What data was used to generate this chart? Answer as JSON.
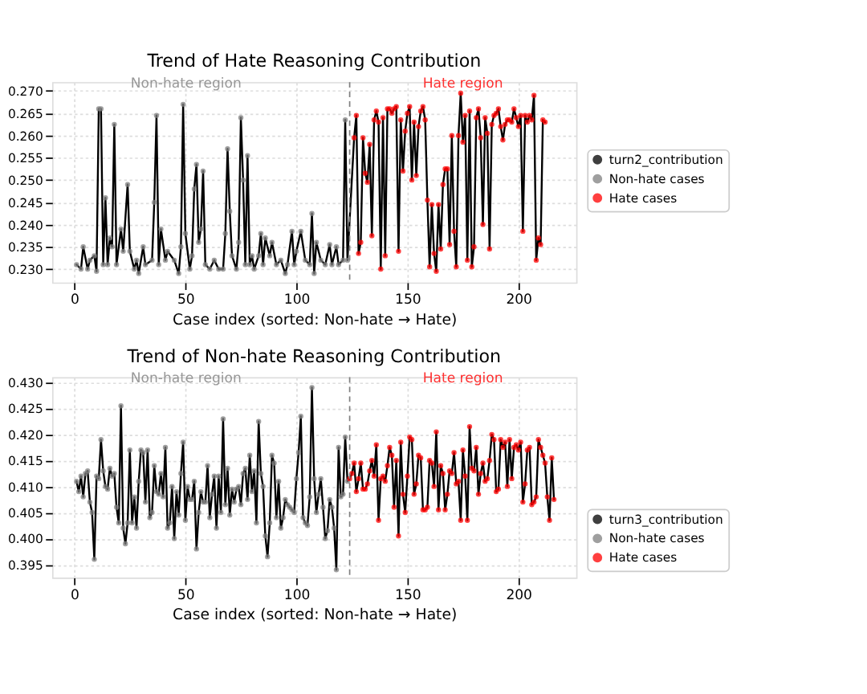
{
  "chart_data": [
    {
      "type": "line",
      "title": "Trend of Hate Reasoning Contribution",
      "xlabel": "Case index (sorted: Non-hate → Hate)",
      "xlim": [
        -10,
        226
      ],
      "ylim": [
        0.227,
        0.272
      ],
      "xticks": [
        0,
        50,
        100,
        150,
        200
      ],
      "yticks": [
        {
          "value": 0.23,
          "label": "0.230"
        },
        0.235,
        {
          "value": 0.24,
          "label": "0.240"
        },
        0.245,
        {
          "value": 0.25,
          "label": "0.250"
        },
        0.255,
        {
          "value": 0.26,
          "label": "0.260"
        },
        0.265,
        {
          "value": 0.27,
          "label": "0.270"
        }
      ],
      "grid": true,
      "legend": "right",
      "marker": "none",
      "ref_lines": [
        {
          "axis": "x",
          "value": 124,
          "color": "#808080",
          "line_style": "dashed"
        }
      ],
      "annotations": [
        "Non-hate region",
        "Hate region"
      ],
      "series": [
        {
          "name": "turn2_contribution",
          "color": "#000000",
          "line_style": "solid",
          "x": [
            1,
            3,
            4,
            6,
            7,
            9,
            10,
            11,
            12,
            13,
            14,
            15,
            16,
            17,
            18,
            19,
            21,
            22,
            24,
            25,
            27,
            28,
            29,
            31,
            32,
            35,
            36,
            37,
            38,
            39,
            41,
            42,
            45,
            47,
            48,
            49,
            50,
            52,
            53,
            54,
            55,
            56,
            57,
            58,
            59,
            61,
            63,
            65,
            67,
            68,
            69,
            70,
            71,
            73,
            74,
            75,
            76,
            77,
            78,
            79,
            80,
            81,
            83,
            84,
            85,
            86,
            88,
            89,
            91,
            93,
            95,
            96,
            98,
            99,
            100,
            102,
            104,
            106,
            107,
            108,
            109,
            111,
            113,
            115,
            116,
            118,
            119,
            121,
            122,
            123,
            126,
            127,
            128,
            129,
            130,
            131,
            132,
            133,
            134,
            135,
            136,
            137,
            138,
            139,
            140,
            141,
            142,
            143,
            144,
            145,
            146,
            147,
            148,
            149,
            150,
            151,
            152,
            153,
            154,
            155,
            156,
            157,
            158,
            159,
            160,
            161,
            162,
            163,
            164,
            165,
            166,
            167,
            168,
            169,
            170,
            171,
            172,
            173,
            174,
            175,
            176,
            177,
            178,
            179,
            180,
            181,
            182,
            183,
            184,
            185,
            186,
            187,
            188,
            189,
            190,
            191,
            192,
            193,
            194,
            195,
            196,
            197,
            198,
            199,
            200,
            201,
            202,
            203,
            204,
            205,
            206,
            207,
            208,
            209,
            210,
            211,
            212
          ],
          "values": [
            0.231,
            0.23,
            0.235,
            0.23,
            0.232,
            0.233,
            0.2295,
            0.266,
            0.266,
            0.231,
            0.246,
            0.231,
            0.237,
            0.235,
            0.2625,
            0.231,
            0.239,
            0.234,
            0.249,
            0.234,
            0.23,
            0.232,
            0.229,
            0.235,
            0.231,
            0.232,
            0.245,
            0.2645,
            0.231,
            0.239,
            0.232,
            0.234,
            0.232,
            0.229,
            0.235,
            0.267,
            0.238,
            0.23,
            0.233,
            0.248,
            0.2535,
            0.236,
            0.239,
            0.252,
            0.231,
            0.23,
            0.232,
            0.23,
            0.23,
            0.238,
            0.257,
            0.243,
            0.233,
            0.23,
            0.236,
            0.264,
            0.25,
            0.231,
            0.2555,
            0.231,
            0.233,
            0.23,
            0.233,
            0.238,
            0.231,
            0.237,
            0.233,
            0.236,
            0.231,
            0.232,
            0.229,
            0.231,
            0.2385,
            0.231,
            0.234,
            0.2385,
            0.232,
            0.231,
            0.2425,
            0.229,
            0.236,
            0.232,
            0.231,
            0.2355,
            0.231,
            0.235,
            0.231,
            0.232,
            0.2635,
            0.232,
            0.2595,
            0.2645,
            0.2335,
            0.236,
            0.2595,
            0.2515,
            0.2495,
            0.258,
            0.2375,
            0.2635,
            0.2655,
            0.263,
            0.23,
            0.264,
            0.233,
            0.266,
            0.266,
            0.265,
            0.266,
            0.2665,
            0.234,
            0.2635,
            0.252,
            0.261,
            0.265,
            0.2665,
            0.25,
            0.263,
            0.251,
            0.262,
            0.2655,
            0.2665,
            0.2635,
            0.2455,
            0.2305,
            0.2445,
            0.2335,
            0.2295,
            0.2445,
            0.2345,
            0.249,
            0.2525,
            0.2525,
            0.2355,
            0.26,
            0.2385,
            0.2305,
            0.26,
            0.2695,
            0.2585,
            0.2645,
            0.232,
            0.2655,
            0.2305,
            0.235,
            0.264,
            0.266,
            0.2595,
            0.24,
            0.264,
            0.2605,
            0.2345,
            0.2625,
            0.2645,
            0.265,
            0.266,
            0.262,
            0.259,
            0.2625,
            0.2635,
            0.2635,
            0.263,
            0.266,
            0.264,
            0.262,
            0.2645,
            0.2385,
            0.2645,
            0.263,
            0.2645,
            0.2635,
            0.269,
            0.232,
            0.237,
            0.2355,
            0.2635,
            0.263
          ]
        },
        {
          "name": "Non-hate cases",
          "type": "scatter",
          "color": "#808080",
          "marker": "circle",
          "x": [
            1,
            3,
            4,
            6,
            7,
            9,
            10,
            11,
            12,
            13,
            14,
            15,
            16,
            17,
            18,
            19,
            21,
            22,
            24,
            25,
            27,
            28,
            29,
            31,
            32,
            35,
            36,
            37,
            38,
            39,
            41,
            42,
            45,
            47,
            48,
            49,
            50,
            52,
            53,
            54,
            55,
            56,
            57,
            58,
            59,
            61,
            63,
            65,
            67,
            68,
            69,
            70,
            71,
            73,
            74,
            75,
            76,
            77,
            78,
            79,
            80,
            81,
            83,
            84,
            85,
            86,
            88,
            89,
            91,
            93,
            95,
            96,
            98,
            99,
            100,
            102,
            104,
            106,
            107,
            108,
            109,
            111,
            113,
            115,
            116,
            118,
            119,
            121,
            122,
            123
          ],
          "values": [
            0.231,
            0.23,
            0.235,
            0.23,
            0.232,
            0.233,
            0.2295,
            0.266,
            0.266,
            0.231,
            0.246,
            0.231,
            0.237,
            0.235,
            0.2625,
            0.231,
            0.239,
            0.234,
            0.249,
            0.234,
            0.23,
            0.232,
            0.229,
            0.235,
            0.231,
            0.232,
            0.245,
            0.2645,
            0.231,
            0.239,
            0.232,
            0.234,
            0.232,
            0.229,
            0.235,
            0.267,
            0.238,
            0.23,
            0.233,
            0.248,
            0.2535,
            0.236,
            0.239,
            0.252,
            0.231,
            0.23,
            0.232,
            0.23,
            0.23,
            0.238,
            0.257,
            0.243,
            0.233,
            0.23,
            0.236,
            0.264,
            0.25,
            0.231,
            0.2555,
            0.231,
            0.233,
            0.23,
            0.233,
            0.238,
            0.231,
            0.237,
            0.233,
            0.236,
            0.231,
            0.232,
            0.229,
            0.231,
            0.2385,
            0.231,
            0.234,
            0.2385,
            0.232,
            0.231,
            0.2425,
            0.229,
            0.236,
            0.232,
            0.231,
            0.2355,
            0.231,
            0.235,
            0.231,
            0.232,
            0.2635,
            0.232
          ]
        },
        {
          "name": "Hate cases",
          "type": "scatter",
          "color": "#ff0000",
          "marker": "circle",
          "x": [
            126,
            127,
            128,
            129,
            130,
            131,
            132,
            133,
            134,
            135,
            136,
            137,
            138,
            139,
            140,
            141,
            142,
            143,
            144,
            145,
            146,
            147,
            148,
            149,
            150,
            151,
            152,
            153,
            154,
            155,
            156,
            157,
            158,
            159,
            160,
            161,
            162,
            163,
            164,
            165,
            166,
            167,
            168,
            169,
            170,
            171,
            172,
            173,
            174,
            175,
            176,
            177,
            178,
            179,
            180,
            181,
            182,
            183,
            184,
            185,
            186,
            187,
            188,
            189,
            190,
            191,
            192,
            193,
            194,
            195,
            196,
            197,
            198,
            199,
            200,
            201,
            202,
            203,
            204,
            205,
            206,
            207,
            208,
            209,
            210,
            211,
            212
          ],
          "values": [
            0.2595,
            0.2645,
            0.2335,
            0.236,
            0.2595,
            0.2515,
            0.2495,
            0.258,
            0.2375,
            0.2635,
            0.2655,
            0.263,
            0.23,
            0.264,
            0.233,
            0.266,
            0.266,
            0.265,
            0.266,
            0.2665,
            0.234,
            0.2635,
            0.252,
            0.261,
            0.265,
            0.2665,
            0.25,
            0.263,
            0.251,
            0.262,
            0.2655,
            0.2665,
            0.2635,
            0.2455,
            0.2305,
            0.2445,
            0.2335,
            0.2295,
            0.2445,
            0.2345,
            0.249,
            0.2525,
            0.2525,
            0.2355,
            0.26,
            0.2385,
            0.2305,
            0.26,
            0.2695,
            0.2585,
            0.2645,
            0.232,
            0.2655,
            0.2305,
            0.235,
            0.264,
            0.266,
            0.2595,
            0.24,
            0.264,
            0.2605,
            0.2345,
            0.2625,
            0.2645,
            0.265,
            0.266,
            0.262,
            0.259,
            0.2625,
            0.2635,
            0.2635,
            0.263,
            0.266,
            0.264,
            0.262,
            0.2645,
            0.2385,
            0.2645,
            0.263,
            0.2645,
            0.2635,
            0.269,
            0.232,
            0.237,
            0.2355,
            0.2635,
            0.263
          ]
        }
      ]
    },
    {
      "type": "line",
      "title": "Trend of Non-hate Reasoning Contribution",
      "xlabel": "Case index (sorted: Non-hate → Hate)",
      "xlim": [
        -10,
        226
      ],
      "ylim": [
        0.3925,
        0.431
      ],
      "xticks": [
        0,
        50,
        100,
        150,
        200
      ],
      "yticks": [
        0.395,
        {
          "value": 0.4,
          "label": "0.400"
        },
        0.405,
        {
          "value": 0.41,
          "label": "0.410"
        },
        0.415,
        {
          "value": 0.42,
          "label": "0.420"
        },
        0.425,
        {
          "value": 0.43,
          "label": "0.430"
        }
      ],
      "grid": true,
      "legend": "bottom right",
      "marker": "none",
      "ref_lines": [
        {
          "axis": "x",
          "value": 124,
          "color": "#808080",
          "line_style": "dashed"
        }
      ],
      "annotations": [
        "Non-hate region",
        "Hate region"
      ],
      "series": [
        {
          "name": "turn3_contribution",
          "color": "#000000",
          "line_style": "solid",
          "x": [
            1,
            2,
            3,
            4,
            5,
            6,
            7,
            8,
            9,
            10,
            11,
            12,
            13,
            14,
            15,
            16,
            17,
            18,
            19,
            20,
            21,
            22,
            23,
            24,
            25,
            26,
            27,
            28,
            29,
            30,
            31,
            32,
            33,
            34,
            35,
            36,
            37,
            38,
            39,
            40,
            41,
            42,
            43,
            44,
            45,
            46,
            47,
            48,
            49,
            50,
            51,
            52,
            53,
            54,
            55,
            56,
            57,
            58,
            59,
            60,
            61,
            62,
            63,
            64,
            65,
            66,
            67,
            68,
            69,
            70,
            71,
            72,
            73,
            74,
            75,
            76,
            77,
            78,
            79,
            80,
            81,
            82,
            83,
            84,
            85,
            86,
            87,
            88,
            89,
            90,
            91,
            92,
            93,
            94,
            95,
            96,
            97,
            98,
            99,
            100,
            101,
            102,
            103,
            104,
            105,
            106,
            107,
            108,
            109,
            110,
            111,
            112,
            113,
            114,
            115,
            116,
            117,
            118,
            119,
            120,
            121,
            122,
            123,
            124,
            125,
            126,
            127,
            128,
            129,
            130,
            131,
            132,
            133,
            134,
            135,
            136,
            137,
            138,
            139,
            140,
            141,
            142,
            143,
            144,
            145,
            146,
            147,
            148,
            149,
            150,
            151,
            152,
            153,
            154,
            155,
            156,
            157,
            158,
            159,
            160,
            161,
            162,
            163,
            164,
            165,
            166,
            167,
            168,
            169,
            170,
            171,
            172,
            173,
            174,
            175,
            176,
            177,
            178,
            179,
            180,
            181,
            182,
            183,
            184,
            185,
            186,
            187,
            188,
            189,
            190,
            191,
            192,
            193,
            194,
            195,
            196,
            197,
            198,
            199,
            200,
            201,
            202,
            203,
            204,
            205,
            206,
            207,
            208,
            209,
            210,
            211,
            212,
            213,
            214,
            215,
            216
          ],
          "values": [
            0.411,
            0.409,
            0.412,
            0.408,
            0.4125,
            0.413,
            0.407,
            0.405,
            0.396,
            0.412,
            0.4115,
            0.419,
            0.413,
            0.41,
            0.4095,
            0.4135,
            0.412,
            0.4125,
            0.406,
            0.403,
            0.4255,
            0.402,
            0.399,
            0.403,
            0.417,
            0.403,
            0.408,
            0.402,
            0.411,
            0.417,
            0.4165,
            0.407,
            0.417,
            0.404,
            0.405,
            0.414,
            0.409,
            0.4085,
            0.4125,
            0.408,
            0.4175,
            0.402,
            0.403,
            0.41,
            0.4,
            0.409,
            0.4045,
            0.4125,
            0.4185,
            0.4035,
            0.41,
            0.4075,
            0.4075,
            0.411,
            0.398,
            0.405,
            0.409,
            0.407,
            0.407,
            0.414,
            0.404,
            0.4085,
            0.412,
            0.402,
            0.412,
            0.405,
            0.423,
            0.4065,
            0.4135,
            0.4045,
            0.4095,
            0.407,
            0.4095,
            0.41,
            0.4065,
            0.4125,
            0.4135,
            0.4075,
            0.416,
            0.409,
            0.413,
            0.403,
            0.4225,
            0.4125,
            0.41,
            0.4005,
            0.3965,
            0.403,
            0.416,
            0.4145,
            0.404,
            0.411,
            0.402,
            0.404,
            0.4075,
            0.4065,
            0.406,
            0.4055,
            0.405,
            0.4115,
            0.4165,
            0.4235,
            0.404,
            0.403,
            0.4025,
            0.408,
            0.429,
            0.4115,
            0.405,
            0.4085,
            0.4115,
            0.406,
            0.4,
            0.4015,
            0.4075,
            0.406,
            0.402,
            0.394,
            0.4175,
            0.408,
            0.4085,
            0.4195,
            0.411,
            0.4115,
            0.4125,
            0.4145,
            0.409,
            0.4115,
            0.4145,
            0.4095,
            0.4095,
            0.4105,
            0.413,
            0.415,
            0.412,
            0.418,
            0.4035,
            0.4115,
            0.412,
            0.411,
            0.414,
            0.4175,
            0.416,
            0.406,
            0.415,
            0.4005,
            0.4185,
            0.4085,
            0.405,
            0.412,
            0.4195,
            0.419,
            0.4085,
            0.4105,
            0.416,
            0.4155,
            0.4055,
            0.4055,
            0.406,
            0.415,
            0.4145,
            0.41,
            0.4205,
            0.4055,
            0.414,
            0.4125,
            0.4055,
            0.4085,
            0.413,
            0.4125,
            0.4165,
            0.4105,
            0.411,
            0.4035,
            0.417,
            0.412,
            0.4035,
            0.4215,
            0.4135,
            0.413,
            0.4175,
            0.4085,
            0.4125,
            0.4145,
            0.411,
            0.4115,
            0.415,
            0.42,
            0.419,
            0.409,
            0.4095,
            0.419,
            0.4175,
            0.4185,
            0.41,
            0.419,
            0.4115,
            0.4175,
            0.418,
            0.417,
            0.4185,
            0.407,
            0.4105,
            0.417,
            0.4175,
            0.4065,
            0.407,
            0.408,
            0.419,
            0.4175,
            0.416,
            0.4145,
            0.408,
            0.4035,
            0.4155,
            0.4075
          ]
        },
        {
          "name": "Non-hate cases",
          "type": "scatter",
          "color": "#808080",
          "marker": "circle",
          "x": [
            1,
            2,
            3,
            4,
            5,
            6,
            7,
            8,
            9,
            10,
            11,
            12,
            13,
            14,
            15,
            16,
            17,
            18,
            19,
            20,
            21,
            22,
            23,
            24,
            25,
            26,
            27,
            28,
            29,
            30,
            31,
            32,
            33,
            34,
            35,
            36,
            37,
            38,
            39,
            40,
            41,
            42,
            43,
            44,
            45,
            46,
            47,
            48,
            49,
            50,
            51,
            52,
            53,
            54,
            55,
            56,
            57,
            58,
            59,
            60,
            61,
            62,
            63,
            64,
            65,
            66,
            67,
            68,
            69,
            70,
            71,
            72,
            73,
            74,
            75,
            76,
            77,
            78,
            79,
            80,
            81,
            82,
            83,
            84,
            85,
            86,
            87,
            88,
            89,
            90,
            91,
            92,
            93,
            94,
            95,
            96,
            97,
            98,
            99,
            100,
            101,
            102,
            103,
            104,
            105,
            106,
            107,
            108,
            109,
            110,
            111,
            112,
            113,
            114,
            115,
            116,
            117,
            118,
            119,
            120,
            121,
            122,
            123
          ],
          "values": [
            0.411,
            0.409,
            0.412,
            0.408,
            0.4125,
            0.413,
            0.407,
            0.405,
            0.396,
            0.412,
            0.4115,
            0.419,
            0.413,
            0.41,
            0.4095,
            0.4135,
            0.412,
            0.4125,
            0.406,
            0.403,
            0.4255,
            0.402,
            0.399,
            0.403,
            0.417,
            0.403,
            0.408,
            0.402,
            0.411,
            0.417,
            0.4165,
            0.407,
            0.417,
            0.404,
            0.405,
            0.414,
            0.409,
            0.4085,
            0.4125,
            0.408,
            0.4175,
            0.402,
            0.403,
            0.41,
            0.4,
            0.409,
            0.4045,
            0.4125,
            0.4185,
            0.4035,
            0.41,
            0.4075,
            0.4075,
            0.411,
            0.398,
            0.405,
            0.409,
            0.407,
            0.407,
            0.414,
            0.404,
            0.4085,
            0.412,
            0.402,
            0.412,
            0.405,
            0.423,
            0.4065,
            0.4135,
            0.4045,
            0.4095,
            0.407,
            0.4095,
            0.41,
            0.4065,
            0.4125,
            0.4135,
            0.4075,
            0.416,
            0.409,
            0.413,
            0.403,
            0.4225,
            0.4125,
            0.41,
            0.4005,
            0.3965,
            0.403,
            0.416,
            0.4145,
            0.404,
            0.411,
            0.402,
            0.404,
            0.4075,
            0.4065,
            0.406,
            0.4055,
            0.405,
            0.4115,
            0.4165,
            0.4235,
            0.404,
            0.403,
            0.4025,
            0.408,
            0.429,
            0.4115,
            0.405,
            0.4085,
            0.4115,
            0.406,
            0.4,
            0.4015,
            0.4075,
            0.406,
            0.402,
            0.394,
            0.4175,
            0.408,
            0.4085,
            0.4195,
            0.411
          ]
        },
        {
          "name": "Hate cases",
          "type": "scatter",
          "color": "#ff0000",
          "marker": "circle",
          "x": [
            124,
            125,
            126,
            127,
            128,
            129,
            130,
            131,
            132,
            133,
            134,
            135,
            136,
            137,
            138,
            139,
            140,
            141,
            142,
            143,
            144,
            145,
            146,
            147,
            148,
            149,
            150,
            151,
            152,
            153,
            154,
            155,
            156,
            157,
            158,
            159,
            160,
            161,
            162,
            163,
            164,
            165,
            166,
            167,
            168,
            169,
            170,
            171,
            172,
            173,
            174,
            175,
            176,
            177,
            178,
            179,
            180,
            181,
            182,
            183,
            184,
            185,
            186,
            187,
            188,
            189,
            190,
            191,
            192,
            193,
            194,
            195,
            196,
            197,
            198,
            199,
            200,
            201,
            202,
            203,
            204,
            205,
            206,
            207,
            208,
            209,
            210,
            211,
            212,
            213,
            214,
            215,
            216
          ],
          "values": [
            0.4115,
            0.4125,
            0.4145,
            0.409,
            0.4115,
            0.4145,
            0.4095,
            0.4095,
            0.4105,
            0.413,
            0.415,
            0.412,
            0.418,
            0.4035,
            0.4115,
            0.412,
            0.411,
            0.414,
            0.4175,
            0.416,
            0.406,
            0.415,
            0.4005,
            0.4185,
            0.4085,
            0.405,
            0.412,
            0.4195,
            0.419,
            0.4085,
            0.4105,
            0.416,
            0.4155,
            0.4055,
            0.4055,
            0.406,
            0.415,
            0.4145,
            0.41,
            0.4205,
            0.4055,
            0.414,
            0.4125,
            0.4055,
            0.4085,
            0.413,
            0.4125,
            0.4165,
            0.4105,
            0.411,
            0.4035,
            0.417,
            0.412,
            0.4035,
            0.4215,
            0.4135,
            0.413,
            0.4175,
            0.4085,
            0.4125,
            0.4145,
            0.411,
            0.4115,
            0.415,
            0.42,
            0.419,
            0.409,
            0.4095,
            0.419,
            0.4175,
            0.4185,
            0.41,
            0.419,
            0.4115,
            0.4175,
            0.418,
            0.417,
            0.4185,
            0.407,
            0.4105,
            0.417,
            0.4175,
            0.4065,
            0.407,
            0.408,
            0.419,
            0.4175,
            0.416,
            0.4145,
            0.408,
            0.4035,
            0.4155,
            0.4075
          ]
        }
      ]
    }
  ]
}
